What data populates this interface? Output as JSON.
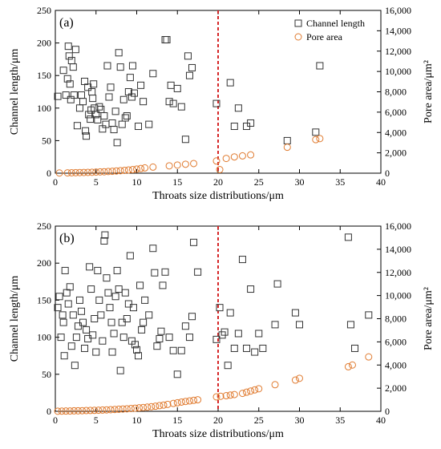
{
  "chart_data": [
    {
      "type": "scatter",
      "panel_label": "(a)",
      "xlabel": "Throats size distributions/μm",
      "ylabel": "Channel length/μm",
      "y2label": "Pore area/μm²",
      "xlim": [
        0,
        40
      ],
      "ylim": [
        0,
        250
      ],
      "y2lim": [
        0,
        16000
      ],
      "xticks": [
        0,
        5,
        10,
        15,
        20,
        25,
        30,
        35,
        40
      ],
      "yticks": [
        0,
        50,
        100,
        150,
        200,
        250
      ],
      "y2ticks": [
        "0",
        "2,000",
        "4,000",
        "6,000",
        "8,000",
        "10,000",
        "12,000",
        "14,000",
        "16,000"
      ],
      "threshold_x": 20,
      "colors": {
        "channel": "#333333",
        "pore": "#e07b30",
        "threshold": "#d62728"
      },
      "legend": {
        "position": "top-right",
        "entries": [
          "Channel length",
          "Pore area"
        ]
      },
      "series": [
        {
          "name": "Channel length",
          "marker": "square",
          "axis": "left",
          "points": [
            [
              0.3,
              118
            ],
            [
              1.0,
              158
            ],
            [
              1.3,
              120
            ],
            [
              1.5,
              145
            ],
            [
              1.6,
              195
            ],
            [
              1.7,
              180
            ],
            [
              1.8,
              137
            ],
            [
              1.9,
              113
            ],
            [
              2.0,
              173
            ],
            [
              2.2,
              163
            ],
            [
              2.3,
              120
            ],
            [
              2.5,
              190
            ],
            [
              2.7,
              73
            ],
            [
              3.0,
              100
            ],
            [
              3.2,
              120
            ],
            [
              3.4,
              110
            ],
            [
              3.6,
              141
            ],
            [
              3.7,
              65
            ],
            [
              3.8,
              57
            ],
            [
              4.0,
              132
            ],
            [
              4.1,
              90
            ],
            [
              4.3,
              83
            ],
            [
              4.4,
              97
            ],
            [
              4.5,
              125
            ],
            [
              4.6,
              115
            ],
            [
              4.7,
              137
            ],
            [
              4.8,
              100
            ],
            [
              5.0,
              90
            ],
            [
              5.2,
              82
            ],
            [
              5.4,
              102
            ],
            [
              5.6,
              98
            ],
            [
              5.8,
              68
            ],
            [
              6.0,
              88
            ],
            [
              6.2,
              75
            ],
            [
              6.4,
              165
            ],
            [
              6.6,
              117
            ],
            [
              6.8,
              132
            ],
            [
              7.0,
              77
            ],
            [
              7.2,
              67
            ],
            [
              7.4,
              95
            ],
            [
              7.6,
              47
            ],
            [
              7.8,
              185
            ],
            [
              8.0,
              163
            ],
            [
              8.2,
              75
            ],
            [
              8.4,
              113
            ],
            [
              8.6,
              85
            ],
            [
              8.8,
              88
            ],
            [
              9.0,
              125
            ],
            [
              9.2,
              147
            ],
            [
              9.4,
              117
            ],
            [
              9.5,
              165
            ],
            [
              9.7,
              123
            ],
            [
              10.2,
              72
            ],
            [
              10.5,
              135
            ],
            [
              10.8,
              110
            ],
            [
              11.5,
              75
            ],
            [
              12.0,
              153
            ],
            [
              13.5,
              205
            ],
            [
              13.7,
              205
            ],
            [
              14.0,
              110
            ],
            [
              14.2,
              135
            ],
            [
              14.5,
              107
            ],
            [
              15.0,
              130
            ],
            [
              15.5,
              102
            ],
            [
              16.0,
              52
            ],
            [
              16.3,
              180
            ],
            [
              16.5,
              150
            ],
            [
              16.8,
              162
            ],
            [
              19.8,
              107
            ],
            [
              21.5,
              139
            ],
            [
              22.0,
              72
            ],
            [
              22.5,
              100
            ],
            [
              23.5,
              72
            ],
            [
              24.0,
              77
            ],
            [
              28.5,
              50
            ],
            [
              32.0,
              63
            ],
            [
              32.5,
              165
            ]
          ]
        },
        {
          "name": "Pore area",
          "marker": "circle",
          "axis": "right",
          "points": [
            [
              0.5,
              20
            ],
            [
              1.5,
              30
            ],
            [
              2.0,
              40
            ],
            [
              2.5,
              50
            ],
            [
              3.0,
              60
            ],
            [
              3.5,
              70
            ],
            [
              4.0,
              80
            ],
            [
              4.5,
              90
            ],
            [
              5.0,
              110
            ],
            [
              5.5,
              130
            ],
            [
              6.0,
              140
            ],
            [
              6.5,
              170
            ],
            [
              7.0,
              190
            ],
            [
              7.5,
              220
            ],
            [
              8.0,
              250
            ],
            [
              8.5,
              280
            ],
            [
              9.0,
              320
            ],
            [
              9.5,
              350
            ],
            [
              10.0,
              400
            ],
            [
              10.5,
              460
            ],
            [
              11.0,
              520
            ],
            [
              12.0,
              600
            ],
            [
              14.0,
              720
            ],
            [
              15.0,
              800
            ],
            [
              16.0,
              880
            ],
            [
              17.0,
              950
            ],
            [
              19.8,
              1200
            ],
            [
              20.2,
              350
            ],
            [
              21.0,
              1450
            ],
            [
              22.0,
              1600
            ],
            [
              23.0,
              1700
            ],
            [
              24.0,
              1800
            ],
            [
              28.5,
              2550
            ],
            [
              32.0,
              3300
            ],
            [
              32.5,
              3400
            ]
          ]
        }
      ]
    },
    {
      "type": "scatter",
      "panel_label": "(b)",
      "xlabel": "Throats size distributions/μm",
      "ylabel": "Channel length/μm",
      "y2label": "Pore area/μm²",
      "xlim": [
        0,
        40
      ],
      "ylim": [
        0,
        250
      ],
      "y2lim": [
        0,
        16000
      ],
      "xticks": [
        0,
        5,
        10,
        15,
        20,
        25,
        30,
        35,
        40
      ],
      "yticks": [
        0,
        50,
        100,
        150,
        200,
        250
      ],
      "y2ticks": [
        "0",
        "2,000",
        "4,000",
        "6,000",
        "8,000",
        "10,000",
        "12,000",
        "14,000",
        "16,000"
      ],
      "threshold_x": 20,
      "colors": {
        "channel": "#333333",
        "pore": "#e07b30",
        "threshold": "#d62728"
      },
      "series": [
        {
          "name": "Channel length",
          "marker": "square",
          "axis": "left",
          "points": [
            [
              0.3,
              140
            ],
            [
              0.5,
              155
            ],
            [
              0.7,
              100
            ],
            [
              0.9,
              130
            ],
            [
              1.0,
              120
            ],
            [
              1.1,
              75
            ],
            [
              1.2,
              190
            ],
            [
              1.4,
              160
            ],
            [
              1.6,
              145
            ],
            [
              1.8,
              168
            ],
            [
              2.0,
              88
            ],
            [
              2.2,
              130
            ],
            [
              2.4,
              62
            ],
            [
              2.6,
              100
            ],
            [
              2.8,
              115
            ],
            [
              3.0,
              150
            ],
            [
              3.2,
              135
            ],
            [
              3.4,
              120
            ],
            [
              3.6,
              85
            ],
            [
              3.8,
              110
            ],
            [
              4.0,
              98
            ],
            [
              4.2,
              195
            ],
            [
              4.4,
              165
            ],
            [
              4.6,
              103
            ],
            [
              4.8,
              125
            ],
            [
              5.0,
              80
            ],
            [
              5.2,
              190
            ],
            [
              5.4,
              150
            ],
            [
              5.6,
              130
            ],
            [
              5.8,
              95
            ],
            [
              6.0,
              230
            ],
            [
              6.1,
              238
            ],
            [
              6.3,
              180
            ],
            [
              6.5,
              160
            ],
            [
              6.7,
              140
            ],
            [
              6.9,
              120
            ],
            [
              7.0,
              80
            ],
            [
              7.2,
              105
            ],
            [
              7.4,
              155
            ],
            [
              7.6,
              190
            ],
            [
              7.8,
              165
            ],
            [
              8.0,
              55
            ],
            [
              8.2,
              120
            ],
            [
              8.4,
              100
            ],
            [
              8.6,
              160
            ],
            [
              8.8,
              125
            ],
            [
              9.0,
              145
            ],
            [
              9.2,
              210
            ],
            [
              9.4,
              95
            ],
            [
              9.6,
              140
            ],
            [
              9.8,
              90
            ],
            [
              10.0,
              83
            ],
            [
              10.2,
              75
            ],
            [
              10.4,
              170
            ],
            [
              10.6,
              110
            ],
            [
              10.8,
              120
            ],
            [
              11.0,
              150
            ],
            [
              11.5,
              130
            ],
            [
              12.0,
              220
            ],
            [
              12.2,
              187
            ],
            [
              12.5,
              88
            ],
            [
              12.8,
              98
            ],
            [
              13.0,
              108
            ],
            [
              13.2,
              170
            ],
            [
              13.5,
              188
            ],
            [
              14.0,
              100
            ],
            [
              14.5,
              82
            ],
            [
              15.0,
              50
            ],
            [
              15.5,
              82
            ],
            [
              16.0,
              115
            ],
            [
              16.5,
              100
            ],
            [
              16.8,
              128
            ],
            [
              17.0,
              228
            ],
            [
              17.5,
              188
            ],
            [
              19.8,
              97
            ],
            [
              20.2,
              140
            ],
            [
              20.5,
              103
            ],
            [
              20.8,
              107
            ],
            [
              21.2,
              62
            ],
            [
              21.5,
              133
            ],
            [
              22.0,
              85
            ],
            [
              22.5,
              105
            ],
            [
              23.0,
              205
            ],
            [
              23.5,
              85
            ],
            [
              24.0,
              165
            ],
            [
              24.5,
              80
            ],
            [
              25.0,
              105
            ],
            [
              25.5,
              85
            ],
            [
              27.0,
              117
            ],
            [
              27.3,
              172
            ],
            [
              29.5,
              133
            ],
            [
              30.0,
              117
            ],
            [
              36.0,
              235
            ],
            [
              36.3,
              117
            ],
            [
              36.8,
              85
            ],
            [
              38.5,
              130
            ]
          ]
        },
        {
          "name": "Pore area",
          "marker": "circle",
          "axis": "right",
          "points": [
            [
              0.3,
              10
            ],
            [
              0.8,
              20
            ],
            [
              1.3,
              25
            ],
            [
              1.8,
              30
            ],
            [
              2.3,
              40
            ],
            [
              2.8,
              45
            ],
            [
              3.3,
              55
            ],
            [
              3.8,
              65
            ],
            [
              4.3,
              75
            ],
            [
              4.8,
              85
            ],
            [
              5.3,
              95
            ],
            [
              5.8,
              110
            ],
            [
              6.3,
              125
            ],
            [
              6.8,
              140
            ],
            [
              7.3,
              160
            ],
            [
              7.8,
              180
            ],
            [
              8.3,
              200
            ],
            [
              8.8,
              220
            ],
            [
              9.3,
              245
            ],
            [
              9.8,
              270
            ],
            [
              10.3,
              300
            ],
            [
              10.8,
              330
            ],
            [
              11.3,
              360
            ],
            [
              11.8,
              400
            ],
            [
              12.3,
              440
            ],
            [
              12.8,
              490
            ],
            [
              13.3,
              540
            ],
            [
              13.8,
              600
            ],
            [
              14.5,
              680
            ],
            [
              15.0,
              740
            ],
            [
              15.5,
              800
            ],
            [
              16.0,
              850
            ],
            [
              16.5,
              900
            ],
            [
              17.0,
              950
            ],
            [
              17.5,
              1000
            ],
            [
              19.8,
              1250
            ],
            [
              20.3,
              1300
            ],
            [
              21.0,
              1350
            ],
            [
              21.5,
              1400
            ],
            [
              22.0,
              1450
            ],
            [
              23.0,
              1550
            ],
            [
              23.5,
              1650
            ],
            [
              24.0,
              1750
            ],
            [
              24.5,
              1850
            ],
            [
              25.0,
              1950
            ],
            [
              27.0,
              2300
            ],
            [
              29.5,
              2700
            ],
            [
              30.0,
              2850
            ],
            [
              36.0,
              3850
            ],
            [
              36.5,
              4000
            ],
            [
              38.5,
              4700
            ]
          ]
        }
      ]
    }
  ]
}
